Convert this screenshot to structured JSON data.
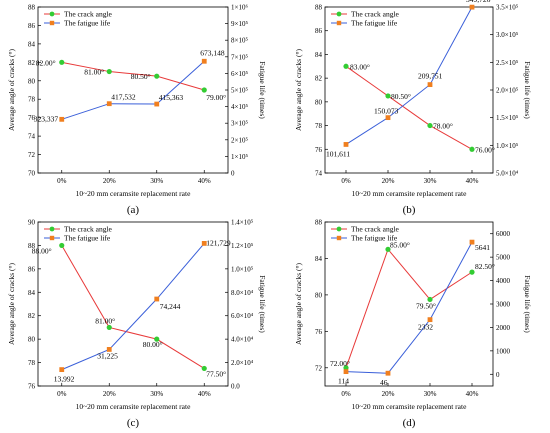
{
  "chart_data": [
    {
      "type": "line",
      "panel_label": "(a)",
      "categories": [
        "0%",
        "20%",
        "30%",
        "40%"
      ],
      "xlabel": "10~20 mm ceramsite replacement rate",
      "ylabel": "Average angle of cracks (°)",
      "y2label": "Fatigue life (times)",
      "ylim": [
        70,
        88
      ],
      "yticks": [
        "70",
        "72",
        "74",
        "76",
        "78",
        "80",
        "82",
        "84",
        "86",
        "88"
      ],
      "y2lim": [
        0,
        1000000
      ],
      "y2ticks": [
        "0",
        "1×10⁵",
        "2×10⁵",
        "3×10⁵",
        "4×10⁵",
        "5×10⁵",
        "6×10⁵",
        "7×10⁵",
        "8×10⁵",
        "9×10⁵",
        "1×10⁶"
      ],
      "legend_position": "top-left",
      "series": [
        {
          "name": "The crack angle",
          "axis": "left",
          "color": "#e83a3a",
          "marker_color": "#33cc33",
          "values": [
            82.0,
            81.0,
            80.5,
            79.0
          ],
          "labels": [
            "82.00°",
            "81.00°",
            "80.50°",
            "79.00°"
          ]
        },
        {
          "name": "The fatigue life",
          "axis": "right",
          "color": "#3a5fd9",
          "marker_color": "#f07f1f",
          "values": [
            323337,
            417532,
            415363,
            673148
          ],
          "labels": [
            "323,337",
            "417,532",
            "415,363",
            "673,148"
          ]
        }
      ]
    },
    {
      "type": "line",
      "panel_label": "(b)",
      "categories": [
        "0%",
        "20%",
        "30%",
        "40%"
      ],
      "xlabel": "10~20 mm ceramsite replacement rate",
      "ylabel": "Average angle of cracks (°)",
      "y2label": "Fatigue life (times)",
      "ylim": [
        74,
        88
      ],
      "yticks": [
        "74",
        "76",
        "78",
        "80",
        "82",
        "84",
        "86",
        "88"
      ],
      "y2lim": [
        50000,
        350000
      ],
      "y2ticks": [
        "5.0×10⁴",
        "1.0×10⁵",
        "1.5×10⁵",
        "2.0×10⁵",
        "2.5×10⁵",
        "3.0×10⁵",
        "3.5×10⁵"
      ],
      "legend_position": "top-left",
      "series": [
        {
          "name": "The crack angle",
          "axis": "left",
          "color": "#e83a3a",
          "marker_color": "#33cc33",
          "values": [
            83.0,
            80.5,
            78.0,
            76.0
          ],
          "labels": [
            "83.00°",
            "80.50°",
            "78.00°",
            "76.00°"
          ]
        },
        {
          "name": "The fatigue life",
          "axis": "right",
          "color": "#3a5fd9",
          "marker_color": "#f07f1f",
          "values": [
            101611,
            150073,
            209751,
            349726
          ],
          "labels": [
            "101,611",
            "150,073",
            "209,751",
            "349,726"
          ]
        }
      ]
    },
    {
      "type": "line",
      "panel_label": "(c)",
      "categories": [
        "0%",
        "20%",
        "30%",
        "40%"
      ],
      "xlabel": "10~20 mm ceramsite replacement rate",
      "ylabel": "Average angle of cracks (°)",
      "y2label": "Fatigue life (times)",
      "ylim": [
        76,
        90
      ],
      "yticks": [
        "76",
        "78",
        "80",
        "82",
        "84",
        "86",
        "88",
        "90"
      ],
      "y2lim": [
        0,
        140000
      ],
      "y2ticks": [
        "0.0",
        "2.0×10⁴",
        "4.0×10⁴",
        "6.0×10⁴",
        "8.0×10⁴",
        "1.0×10⁵",
        "1.2×10⁵",
        "1.4×10⁵"
      ],
      "legend_position": "top-left",
      "series": [
        {
          "name": "The crack angle",
          "axis": "left",
          "color": "#e83a3a",
          "marker_color": "#33cc33",
          "values": [
            88.0,
            81.0,
            80.0,
            77.5
          ],
          "labels": [
            "88.00°",
            "81.00°",
            "80.00°",
            "77.50°"
          ]
        },
        {
          "name": "The fatigue life",
          "axis": "right",
          "color": "#3a5fd9",
          "marker_color": "#f07f1f",
          "values": [
            13992,
            31225,
            74244,
            121729
          ],
          "labels": [
            "13,992",
            "31,225",
            "74,244",
            "121,729"
          ]
        }
      ]
    },
    {
      "type": "line",
      "panel_label": "(d)",
      "categories": [
        "0%",
        "20%",
        "30%",
        "40%"
      ],
      "xlabel": "10~20 mm ceramsite replacement rate",
      "ylabel": "Average angle of cracks (°)",
      "y2label": "Fatigue life (times)",
      "ylim": [
        70,
        88
      ],
      "yticks": [
        "72",
        "76",
        "80",
        "84",
        "88"
      ],
      "y2lim": [
        -500,
        6500
      ],
      "y2ticks": [
        "0",
        "1000",
        "2000",
        "3000",
        "4000",
        "5000",
        "6000"
      ],
      "legend_position": "top-left",
      "series": [
        {
          "name": "The crack angle",
          "axis": "left",
          "color": "#e83a3a",
          "marker_color": "#33cc33",
          "values": [
            72.0,
            85.0,
            79.5,
            82.5
          ],
          "labels": [
            "72.00°",
            "85.00°",
            "79.50°",
            "82.50°"
          ]
        },
        {
          "name": "The fatigue life",
          "axis": "right",
          "color": "#3a5fd9",
          "marker_color": "#f07f1f",
          "values": [
            114,
            46,
            2332,
            5641
          ],
          "labels": [
            "114",
            "46",
            "2332",
            "5641"
          ]
        }
      ]
    }
  ]
}
